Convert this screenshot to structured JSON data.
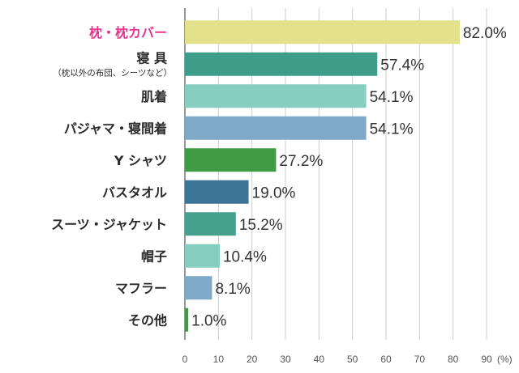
{
  "chart_data": {
    "type": "bar",
    "orientation": "horizontal",
    "categories": [
      "枕・枕カバー",
      "寝 具",
      "肌着",
      "パジャマ・寝間着",
      "Y シャツ",
      "バスタオル",
      "スーツ・ジャケット",
      "帽子",
      "マフラー",
      "その他"
    ],
    "category_subtitles": [
      "",
      "（枕以外の布団、シーツなど）",
      "",
      "",
      "",
      "",
      "",
      "",
      "",
      ""
    ],
    "values": [
      82.0,
      57.4,
      54.1,
      54.1,
      27.2,
      19.0,
      15.2,
      10.4,
      8.1,
      1.0
    ],
    "value_labels": [
      "82.0%",
      "57.4%",
      "54.1%",
      "54.1%",
      "27.2%",
      "19.0%",
      "15.2%",
      "10.4%",
      "8.1%",
      "1.0%"
    ],
    "bar_colors": [
      "#e3e18c",
      "#3f9e8a",
      "#86cfc0",
      "#7fa9c8",
      "#3f9c45",
      "#3a7496",
      "#47a08e",
      "#86cfc0",
      "#7fa9c8",
      "#3f9c45"
    ],
    "label_colors": [
      "#e8358f",
      "#2a2a2a",
      "#2a2a2a",
      "#2a2a2a",
      "#2a2a2a",
      "#2a2a2a",
      "#2a2a2a",
      "#2a2a2a",
      "#2a2a2a",
      "#2a2a2a"
    ],
    "xticks": [
      "0",
      "10",
      "20",
      "30",
      "40",
      "50",
      "60",
      "70",
      "80",
      "90"
    ],
    "xunit": "(%)",
    "xlim": [
      0,
      90
    ],
    "grid": true
  }
}
